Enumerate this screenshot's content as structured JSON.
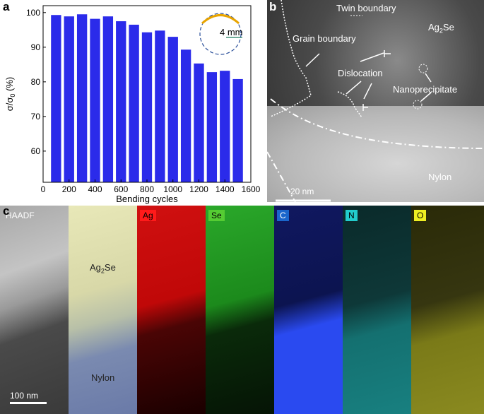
{
  "panel_labels": {
    "a": "a",
    "b": "b",
    "c": "c"
  },
  "chart_data": {
    "type": "bar",
    "x": [
      100,
      200,
      300,
      400,
      500,
      600,
      700,
      800,
      900,
      1000,
      1100,
      1200,
      1300,
      1400,
      1500
    ],
    "values": [
      99.3,
      98.9,
      99.5,
      98.2,
      98.9,
      97.5,
      96.5,
      94.3,
      94.8,
      93.0,
      89.3,
      85.3,
      82.8,
      83.2,
      80.8
    ],
    "xlabel": "Bending cycles",
    "ylabel": "σ/σ",
    "ylabel_sub": "0",
    "ylabel_unit": " (%)",
    "xlim": [
      0,
      1600
    ],
    "ylim": [
      51,
      102
    ],
    "xticks": [
      0,
      200,
      400,
      600,
      800,
      1000,
      1200,
      1400,
      1600
    ],
    "yticks": [
      60,
      70,
      80,
      90,
      100
    ],
    "bar_color": "#2b2bea",
    "inset_label": "4 mm"
  },
  "tem_image": {
    "labels": {
      "twin": "Twin boundary",
      "ag2se_main": "Ag",
      "ag2se_sub": "2",
      "ag2se_tail": "Se",
      "grain": "Grain boundary",
      "dislocation": "Dislocation",
      "nano": "Nanoprecipitate",
      "nylon": "Nylon"
    },
    "scale_bar": "20 nm"
  },
  "eds_maps": {
    "scale_bar": "100 nm",
    "ag2se_main": "Ag",
    "ag2se_sub": "2",
    "ag2se_tail": "Se",
    "nylon": "Nylon",
    "tiles": [
      {
        "label": "HAADF",
        "color": "#ffffff"
      },
      {
        "label": "",
        "color": "#cccc99"
      },
      {
        "label": "Ag",
        "color": "#ff1a1a"
      },
      {
        "label": "Se",
        "color": "#33cc33"
      },
      {
        "label": "C",
        "color": "#2255ff"
      },
      {
        "label": "N",
        "color": "#22cccc"
      },
      {
        "label": "O",
        "color": "#dddd22"
      }
    ]
  }
}
